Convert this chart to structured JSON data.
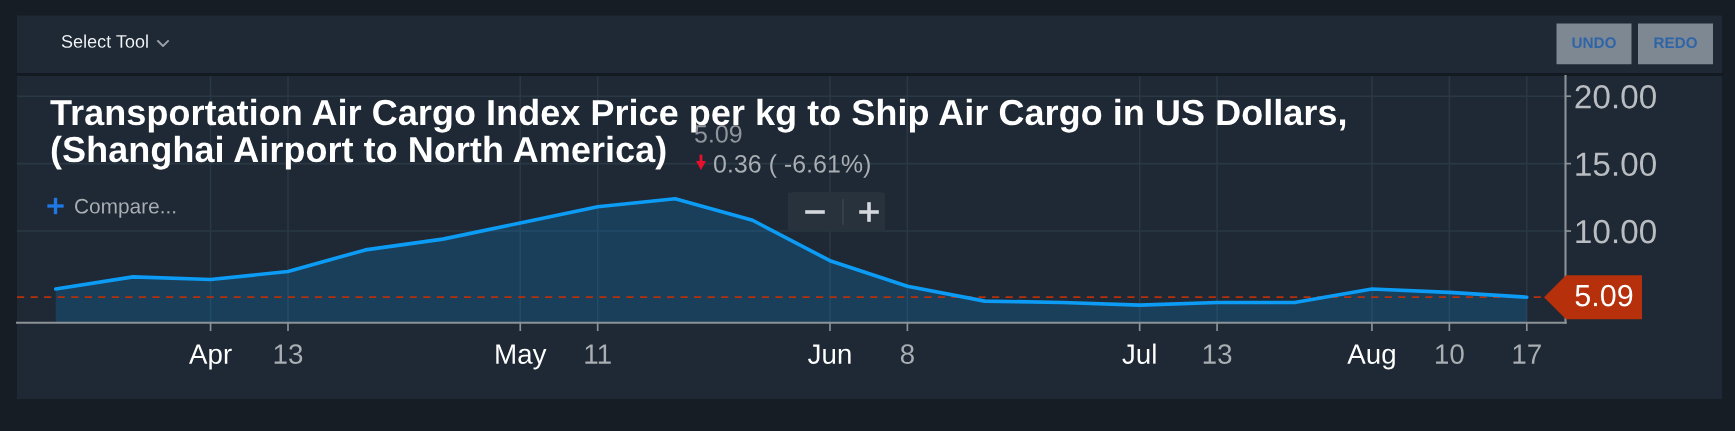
{
  "chart_data": {
    "type": "area",
    "title": "Transportation Air Cargo Index Price per kg to Ship Air Cargo in US Dollars,",
    "subtitle": "(Shanghai Airport to North America)",
    "categories": [
      null,
      null,
      "Apr",
      "13",
      null,
      null,
      "May",
      "11",
      null,
      null,
      "Jun",
      "8",
      null,
      null,
      "Jul",
      "13",
      null,
      "Aug",
      "10",
      "17"
    ],
    "series": [
      {
        "color": "#0c9cf5",
        "values": [
          5.7,
          6.6,
          6.4,
          7.0,
          8.6,
          9.4,
          10.6,
          11.8,
          12.4,
          10.8,
          7.8,
          5.9,
          4.8,
          4.7,
          4.5,
          4.7,
          4.7,
          5.7,
          5.45,
          5.09
        ]
      }
    ],
    "ylim": [
      3.2,
      21.5
    ],
    "yticks": [
      {
        "value": 10,
        "label": "10.00"
      },
      {
        "value": 15,
        "label": "15.00"
      },
      {
        "value": 20,
        "label": "20.00"
      }
    ],
    "grid": true,
    "ref_lines": [
      {
        "axis": "y",
        "value": 5.09,
        "label": "5.09",
        "color": "#b5300b",
        "line_style": "dashed"
      }
    ],
    "annotations": [
      "Select Tool",
      "UNDO",
      "REDO",
      "Compare...",
      "5.09",
      "0.36 ( -6.61%)"
    ]
  }
}
